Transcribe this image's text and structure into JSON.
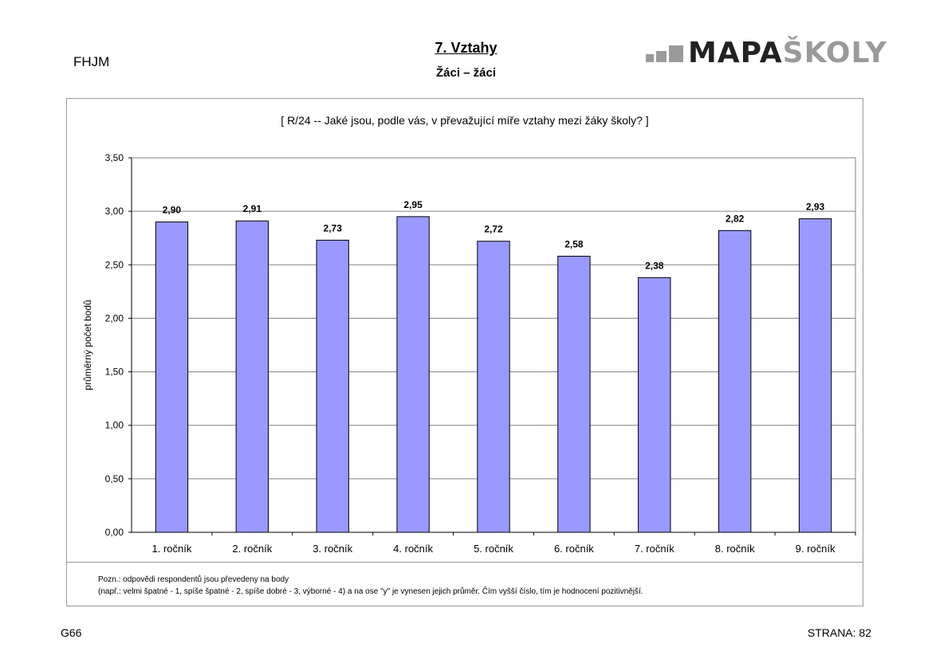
{
  "header": {
    "school_code": "FHJM",
    "section_title": "7. Vztahy",
    "section_subtitle": "Žáci – žáci",
    "logo": {
      "part1": "MAPA",
      "part2": "ŠKOLY"
    }
  },
  "chart_data": {
    "type": "bar",
    "title": "[ R/24 --  Jaké jsou, podle vás, v převažující míře vztahy mezi žáky školy? ]",
    "xlabel": "",
    "ylabel": "průměrný počet bodů",
    "categories": [
      "1. ročník",
      "2. ročník",
      "3. ročník",
      "4. ročník",
      "5. ročník",
      "6. ročník",
      "7. ročník",
      "8. ročník",
      "9. ročník"
    ],
    "values": [
      2.9,
      2.91,
      2.73,
      2.95,
      2.72,
      2.58,
      2.38,
      2.82,
      2.93
    ],
    "value_labels": [
      "2,90",
      "2,91",
      "2,73",
      "2,95",
      "2,72",
      "2,58",
      "2,38",
      "2,82",
      "2,93"
    ],
    "ylim": [
      0,
      3.5
    ],
    "yticks": [
      0,
      0.5,
      1.0,
      1.5,
      2.0,
      2.5,
      3.0,
      3.5
    ],
    "ytick_labels": [
      "0,00",
      "0,50",
      "1,00",
      "1,50",
      "2,00",
      "2,50",
      "3,00",
      "3,50"
    ],
    "grid": true,
    "legend": "none",
    "bar_color": "#9999ff",
    "plot_bg": "#ffffff"
  },
  "note": {
    "line1": "Pozn.: odpovědi respondentů jsou převedeny na body",
    "line2": "(např.: velmi špatné - 1, spíše špatné - 2, spíše dobré - 3, výborné - 4) a na ose \"y\" je vynesen jejich průměr. Čím vyšší číslo, tím je hodnocení pozitivnější."
  },
  "footer": {
    "left": "G66",
    "right": "STRANA: 82"
  }
}
